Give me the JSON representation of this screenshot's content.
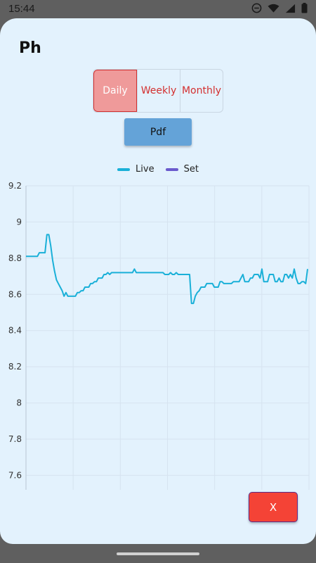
{
  "status_bar": {
    "time": "15:44"
  },
  "title": "Ph",
  "range_selector": {
    "options": [
      {
        "label": "Daily",
        "active": true
      },
      {
        "label": "Weekly",
        "active": false
      },
      {
        "label": "Monthly",
        "active": false
      }
    ]
  },
  "pdf_button": {
    "label": "Pdf"
  },
  "close_button": {
    "label": "X"
  },
  "chart_data": {
    "type": "line",
    "legend": [
      {
        "name": "Live",
        "color": "#1ab0d8"
      },
      {
        "name": "Set",
        "color": "#6a5acd"
      }
    ],
    "ylim": [
      7.52,
      9.2
    ],
    "y_ticks": [
      9.2,
      9,
      8.8,
      8.6,
      8.4,
      8.2,
      8,
      7.8,
      7.6
    ],
    "y_tick_labels": [
      "9.2",
      "9",
      "8.8",
      "8.6",
      "8.4",
      "8.2",
      "8",
      "7.8",
      "7.6"
    ],
    "grid": true,
    "series": [
      {
        "name": "Live",
        "color": "#1ab0d8",
        "values": [
          8.81,
          8.81,
          8.81,
          8.81,
          8.81,
          8.81,
          8.81,
          8.83,
          8.83,
          8.83,
          8.83,
          8.93,
          8.93,
          8.87,
          8.79,
          8.73,
          8.68,
          8.66,
          8.64,
          8.62,
          8.59,
          8.61,
          8.59,
          8.59,
          8.59,
          8.59,
          8.59,
          8.61,
          8.61,
          8.62,
          8.62,
          8.64,
          8.64,
          8.64,
          8.66,
          8.66,
          8.67,
          8.67,
          8.69,
          8.69,
          8.69,
          8.71,
          8.71,
          8.72,
          8.71,
          8.72,
          8.72,
          8.72,
          8.72,
          8.72,
          8.72,
          8.72,
          8.72,
          8.72,
          8.72,
          8.72,
          8.72,
          8.74,
          8.72,
          8.72,
          8.72,
          8.72,
          8.72,
          8.72,
          8.72,
          8.72,
          8.72,
          8.72,
          8.72,
          8.72,
          8.72,
          8.72,
          8.72,
          8.71,
          8.71,
          8.71,
          8.72,
          8.71,
          8.71,
          8.72,
          8.71,
          8.71,
          8.71,
          8.71,
          8.71,
          8.71,
          8.71,
          8.55,
          8.55,
          8.59,
          8.61,
          8.62,
          8.64,
          8.64,
          8.64,
          8.66,
          8.66,
          8.66,
          8.66,
          8.64,
          8.64,
          8.64,
          8.67,
          8.67,
          8.66,
          8.66,
          8.66,
          8.66,
          8.66,
          8.67,
          8.67,
          8.67,
          8.67,
          8.69,
          8.71,
          8.67,
          8.67,
          8.67,
          8.69,
          8.69,
          8.71,
          8.71,
          8.71,
          8.69,
          8.74,
          8.67,
          8.67,
          8.67,
          8.71,
          8.71,
          8.71,
          8.67,
          8.67,
          8.69,
          8.67,
          8.67,
          8.71,
          8.71,
          8.69,
          8.71,
          8.69,
          8.74,
          8.69,
          8.66,
          8.66,
          8.67,
          8.67,
          8.66,
          8.74
        ]
      },
      {
        "name": "Set",
        "color": "#6a5acd",
        "values": []
      }
    ]
  }
}
